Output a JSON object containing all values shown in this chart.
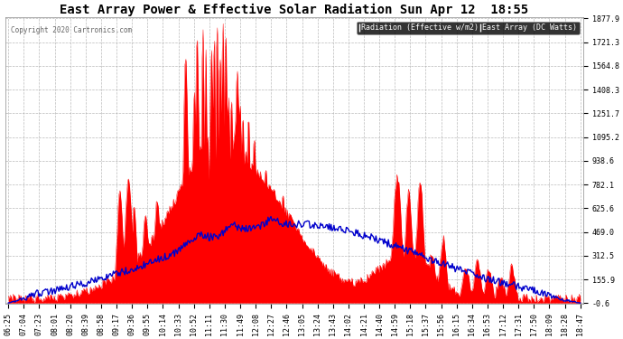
{
  "title": "East Array Power & Effective Solar Radiation Sun Apr 12  18:55",
  "copyright": "Copyright 2020 Cartronics.com",
  "legend_radiation": "Radiation (Effective w/m2)",
  "legend_array": "East Array (DC Watts)",
  "yticks": [
    -0.6,
    155.9,
    312.5,
    469.0,
    625.6,
    782.1,
    938.6,
    1095.2,
    1251.7,
    1408.3,
    1564.8,
    1721.3,
    1877.9
  ],
  "ymin": -0.6,
  "ymax": 1877.9,
  "bg_color": "#ffffff",
  "plot_bg_color": "#ffffff",
  "title_color": "#000000",
  "ytick_color": "#000000",
  "xtick_color": "#000000",
  "grid_color": "#aaaaaa",
  "radiation_color": "#0000cc",
  "array_color": "#ff0000",
  "array_fill_color": "#ff0000",
  "title_fontsize": 10,
  "tick_fontsize": 6,
  "xtick_labels": [
    "06:25",
    "07:04",
    "07:23",
    "08:01",
    "08:20",
    "08:39",
    "08:58",
    "09:17",
    "09:36",
    "09:55",
    "10:14",
    "10:33",
    "10:52",
    "11:11",
    "11:30",
    "11:49",
    "12:08",
    "12:27",
    "12:46",
    "13:05",
    "13:24",
    "13:43",
    "14:02",
    "14:21",
    "14:40",
    "14:59",
    "15:18",
    "15:37",
    "15:56",
    "16:15",
    "16:34",
    "16:53",
    "17:12",
    "17:31",
    "17:50",
    "18:09",
    "18:28",
    "18:47"
  ]
}
